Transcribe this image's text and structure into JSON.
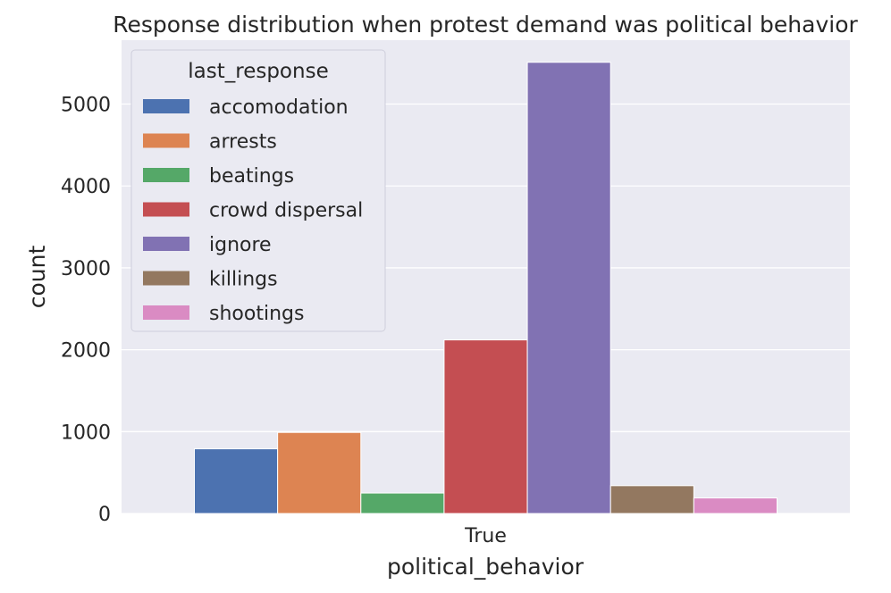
{
  "chart_data": {
    "type": "bar",
    "title": "Response distribution when protest demand was political behavior",
    "xlabel": "political_behavior",
    "ylabel": "count",
    "categories": [
      "True"
    ],
    "ylim": [
      0,
      5780
    ],
    "yticks": [
      0,
      1000,
      2000,
      3000,
      4000,
      5000
    ],
    "grid": true,
    "legend": {
      "title": "last_response",
      "placement": "top-left"
    },
    "series": [
      {
        "name": "accomodation",
        "values": [
          790
        ],
        "color": "#4c72b0"
      },
      {
        "name": "arrests",
        "values": [
          990
        ],
        "color": "#dd8452"
      },
      {
        "name": "beatings",
        "values": [
          250
        ],
        "color": "#55a868"
      },
      {
        "name": "crowd dispersal",
        "values": [
          2120
        ],
        "color": "#c44e52"
      },
      {
        "name": "ignore",
        "values": [
          5510
        ],
        "color": "#8172b3"
      },
      {
        "name": "killings",
        "values": [
          340
        ],
        "color": "#937860"
      },
      {
        "name": "shootings",
        "values": [
          190
        ],
        "color": "#da8bc3"
      }
    ]
  },
  "colors": {
    "plot_background": "#eaeaf2",
    "grid": "#ffffff"
  }
}
